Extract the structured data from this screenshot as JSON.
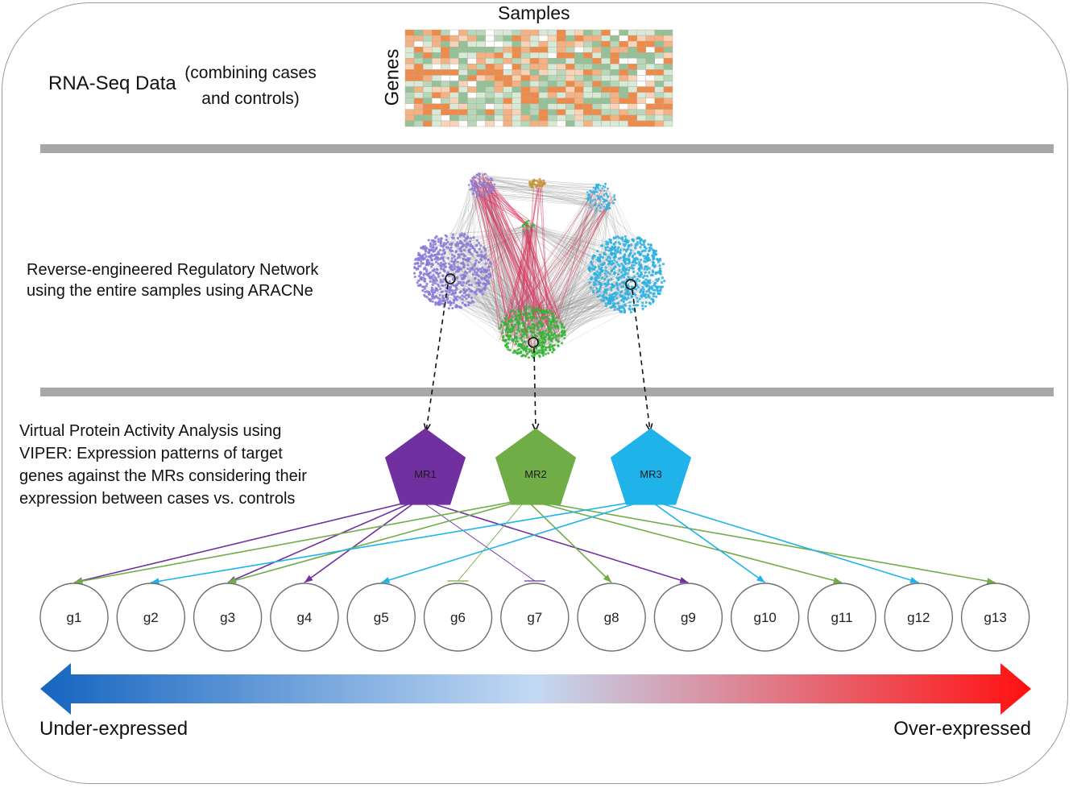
{
  "header": {
    "samples_label": "Samples",
    "genes_label": "Genes",
    "rnaseq_title_main": "RNA-Seq Data",
    "rnaseq_title_paren": "(combining cases\nand controls)"
  },
  "network": {
    "description": "Reverse-engineered Regulatory Network\nusing the entire samples using ARACNe"
  },
  "viper": {
    "description": "Virtual Protein Activity Analysis using\nVIPER: Expression patterns of target\ngenes against the MRs considering their\nexpression between cases vs. controls"
  },
  "master_regulators": [
    {
      "label": "MR1",
      "color": "#7030a0"
    },
    {
      "label": "MR2",
      "color": "#70ad47"
    },
    {
      "label": "MR3",
      "color": "#1fb3ea"
    }
  ],
  "genes": [
    "g1",
    "g2",
    "g3",
    "g4",
    "g5",
    "g6",
    "g7",
    "g8",
    "g9",
    "g10",
    "g11",
    "g12",
    "g13"
  ],
  "edges": [
    {
      "from": 0,
      "to": 0,
      "type": "activate"
    },
    {
      "from": 0,
      "to": 2,
      "type": "activate"
    },
    {
      "from": 0,
      "to": 3,
      "type": "activate"
    },
    {
      "from": 0,
      "to": 6,
      "type": "inhibit"
    },
    {
      "from": 0,
      "to": 8,
      "type": "activate"
    },
    {
      "from": 1,
      "to": 0,
      "type": "activate"
    },
    {
      "from": 1,
      "to": 2,
      "type": "activate"
    },
    {
      "from": 1,
      "to": 5,
      "type": "inhibit"
    },
    {
      "from": 1,
      "to": 7,
      "type": "activate"
    },
    {
      "from": 1,
      "to": 10,
      "type": "activate"
    },
    {
      "from": 1,
      "to": 12,
      "type": "activate"
    },
    {
      "from": 2,
      "to": 1,
      "type": "activate"
    },
    {
      "from": 2,
      "to": 4,
      "type": "activate"
    },
    {
      "from": 2,
      "to": 9,
      "type": "activate"
    },
    {
      "from": 2,
      "to": 11,
      "type": "activate"
    }
  ],
  "expression_scale": {
    "left_label": "Under-expressed",
    "right_label": "Over-expressed",
    "colors": [
      "#1565c0",
      "#c3d9f3",
      "#ff1010"
    ]
  },
  "network_colors": {
    "purple": "#8a7ad6",
    "green": "#2fb52f",
    "cyan": "#2ab0e0",
    "orange": "#c8943a",
    "link_red": "#d9365e",
    "link_gray": "#8a8a8a"
  },
  "heatmap_colors": [
    "#ee8a4a",
    "#f4b184",
    "#f9d3b8",
    "#ffffff",
    "#d7ead8",
    "#b6d7b9",
    "#93c29a"
  ]
}
